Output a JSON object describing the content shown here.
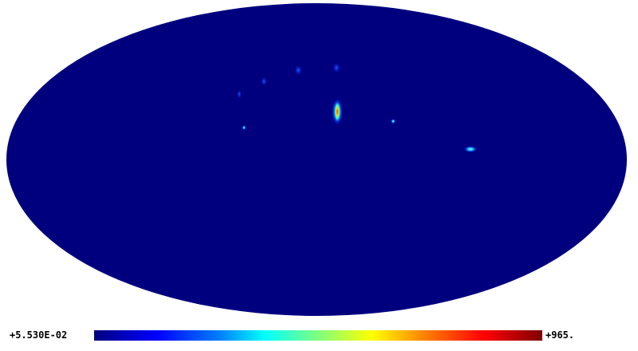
{
  "colorbar": {
    "min_label": "+5.530E-02",
    "max_label": "+965."
  },
  "colors": {
    "background_map": "#00007f",
    "page_background": "#ffffff"
  }
}
